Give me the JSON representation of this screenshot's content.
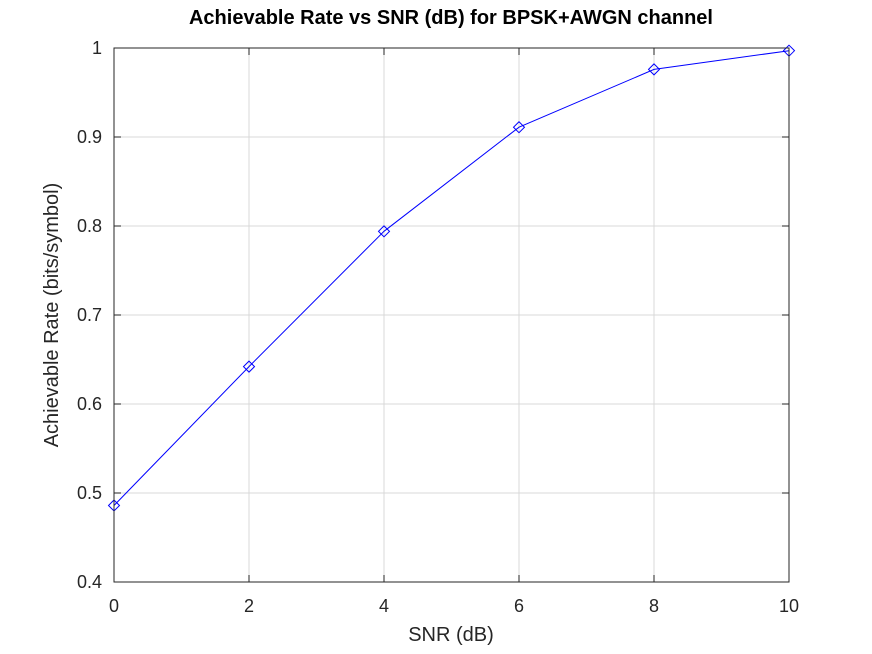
{
  "chart_data": {
    "type": "line",
    "title": "Achievable Rate vs SNR (dB) for BPSK+AWGN channel",
    "xlabel": "SNR (dB)",
    "ylabel": "Achievable Rate (bits/symbol)",
    "xlim": [
      0,
      10
    ],
    "ylim": [
      0.4,
      1
    ],
    "xticks": [
      0,
      2,
      4,
      6,
      8,
      10
    ],
    "xtick_labels": [
      "0",
      "2",
      "4",
      "6",
      "8",
      "10"
    ],
    "yticks": [
      0.4,
      0.5,
      0.6,
      0.7,
      0.8,
      0.9,
      1
    ],
    "ytick_labels": [
      "0.4",
      "0.5",
      "0.6",
      "0.7",
      "0.8",
      "0.9",
      "1"
    ],
    "grid": true,
    "series": [
      {
        "x": [
          0,
          2,
          4,
          6,
          8,
          10
        ],
        "y": [
          0.486,
          0.642,
          0.794,
          0.911,
          0.976,
          0.997
        ],
        "color": "#0000ff",
        "marker": "diamond"
      }
    ]
  }
}
